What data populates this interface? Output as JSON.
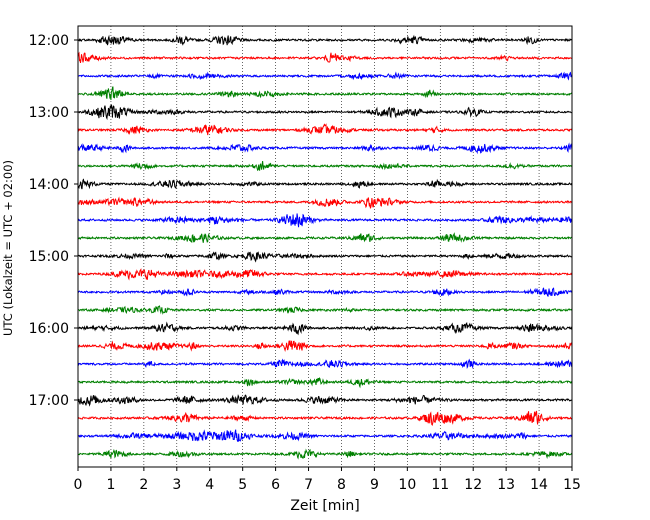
{
  "chart_data": {
    "type": "line",
    "title": "",
    "xlabel": "Zeit  [min]",
    "ylabel": "UTC (Lokalzeit = UTC + 02:00)",
    "xlim": [
      0,
      15
    ],
    "x_ticks": [
      "0",
      "1",
      "2",
      "3",
      "4",
      "5",
      "6",
      "7",
      "8",
      "9",
      "10",
      "11",
      "12",
      "13",
      "14",
      "15"
    ],
    "y_ticks": [
      "12:00",
      "13:00",
      "14:00",
      "15:00",
      "16:00",
      "17:00"
    ],
    "grid": "vertical dotted",
    "trace_minutes": 15,
    "series": [
      {
        "start": "12:00",
        "color": "#000000"
      },
      {
        "start": "12:15",
        "color": "#ff0000"
      },
      {
        "start": "12:30",
        "color": "#0000ff"
      },
      {
        "start": "12:45",
        "color": "#008000"
      },
      {
        "start": "13:00",
        "color": "#000000"
      },
      {
        "start": "13:15",
        "color": "#ff0000"
      },
      {
        "start": "13:30",
        "color": "#0000ff"
      },
      {
        "start": "13:45",
        "color": "#008000"
      },
      {
        "start": "14:00",
        "color": "#000000"
      },
      {
        "start": "14:15",
        "color": "#ff0000"
      },
      {
        "start": "14:30",
        "color": "#0000ff"
      },
      {
        "start": "14:45",
        "color": "#008000"
      },
      {
        "start": "15:00",
        "color": "#000000"
      },
      {
        "start": "15:15",
        "color": "#ff0000"
      },
      {
        "start": "15:30",
        "color": "#0000ff"
      },
      {
        "start": "15:45",
        "color": "#008000"
      },
      {
        "start": "16:00",
        "color": "#000000"
      },
      {
        "start": "16:15",
        "color": "#ff0000"
      },
      {
        "start": "16:30",
        "color": "#0000ff"
      },
      {
        "start": "16:45",
        "color": "#008000"
      },
      {
        "start": "17:00",
        "color": "#000000"
      },
      {
        "start": "17:15",
        "color": "#ff0000"
      },
      {
        "start": "17:30",
        "color": "#0000ff"
      },
      {
        "start": "17:45",
        "color": "#008000"
      }
    ]
  }
}
